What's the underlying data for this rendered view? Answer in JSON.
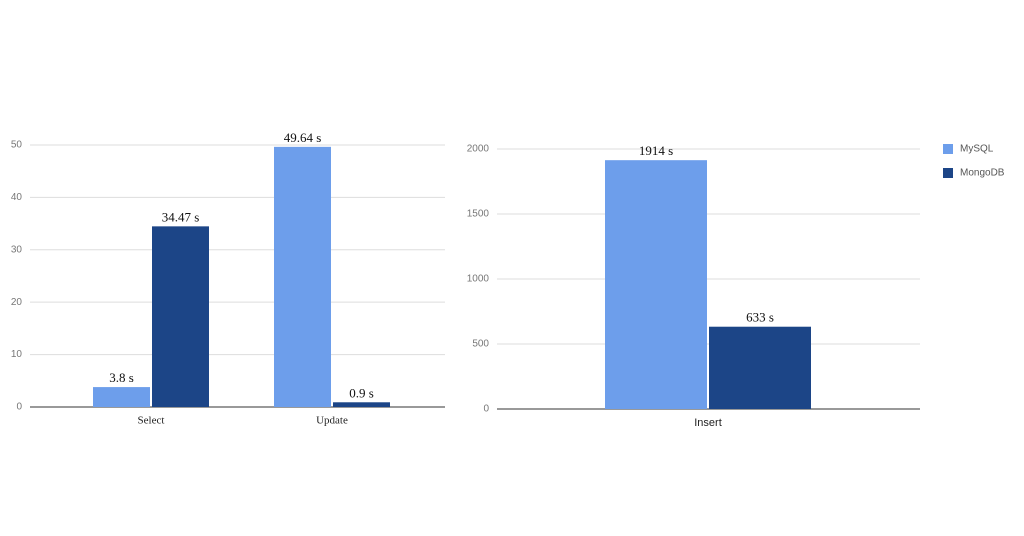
{
  "chart_data": [
    {
      "type": "bar",
      "categories": [
        "Select",
        "Update"
      ],
      "series": [
        {
          "color": "#6d9eeb",
          "values": [
            3.8,
            49.64
          ],
          "value_labels": [
            "3.8 s",
            "49.64 s"
          ]
        },
        {
          "color": "#1c4587",
          "values": [
            34.47,
            0.9
          ],
          "value_labels": [
            "34.47 s",
            "0.9 s"
          ]
        }
      ],
      "ylim": [
        0,
        54
      ],
      "yticks": [
        0,
        10,
        20,
        30,
        40,
        50
      ],
      "grid": true
    },
    {
      "type": "bar",
      "categories": [
        "Insert"
      ],
      "series": [
        {
          "name": "MySQL",
          "color": "#6d9eeb",
          "values": [
            1914
          ],
          "value_labels": [
            "1914 s"
          ]
        },
        {
          "name": "MongoDB",
          "color": "#1c4587",
          "values": [
            633
          ],
          "value_labels": [
            "633 s"
          ]
        }
      ],
      "ylim": [
        0,
        2000
      ],
      "yticks": [
        0,
        500,
        1000,
        1500,
        2000
      ],
      "grid": true,
      "legend": "right"
    }
  ]
}
